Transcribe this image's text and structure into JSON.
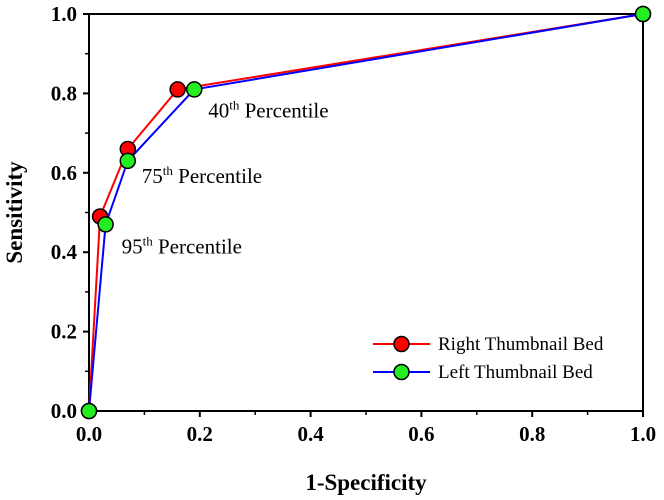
{
  "chart_data": {
    "type": "line",
    "title": "",
    "xlabel": "1-Specificity",
    "ylabel": "Sensitivity",
    "xlim": [
      0.0,
      1.0
    ],
    "ylim": [
      0.0,
      1.0
    ],
    "xticks": [
      "0.0",
      "0.2",
      "0.4",
      "0.6",
      "0.8",
      "1.0"
    ],
    "yticks": [
      "0.0",
      "0.2",
      "0.4",
      "0.6",
      "0.8",
      "1.0"
    ],
    "grid": false,
    "legend_position": "bottom-right",
    "series": [
      {
        "name": "Right Thumbnail Bed",
        "line_color": "#ff0000",
        "marker_color": "#ff0000",
        "points": [
          {
            "x": 0.0,
            "y": 0.0
          },
          {
            "x": 0.02,
            "y": 0.49
          },
          {
            "x": 0.07,
            "y": 0.66
          },
          {
            "x": 0.16,
            "y": 0.81
          },
          {
            "x": 1.0,
            "y": 1.0
          }
        ]
      },
      {
        "name": "Left Thumbnail Bed",
        "line_color": "#0000ff",
        "marker_color": "#22ee22",
        "points": [
          {
            "x": 0.0,
            "y": 0.0
          },
          {
            "x": 0.03,
            "y": 0.47
          },
          {
            "x": 0.07,
            "y": 0.63
          },
          {
            "x": 0.19,
            "y": 0.81
          },
          {
            "x": 1.0,
            "y": 1.0
          }
        ]
      }
    ],
    "annotations": [
      {
        "number": "40",
        "sup": "th",
        "text": " Percentile",
        "x": 0.19,
        "y": 0.81
      },
      {
        "number": "75",
        "sup": "th",
        "text": " Percentile",
        "x": 0.07,
        "y": 0.63
      },
      {
        "number": "95",
        "sup": "th",
        "text": " Percentile",
        "x": 0.03,
        "y": 0.47
      }
    ]
  }
}
